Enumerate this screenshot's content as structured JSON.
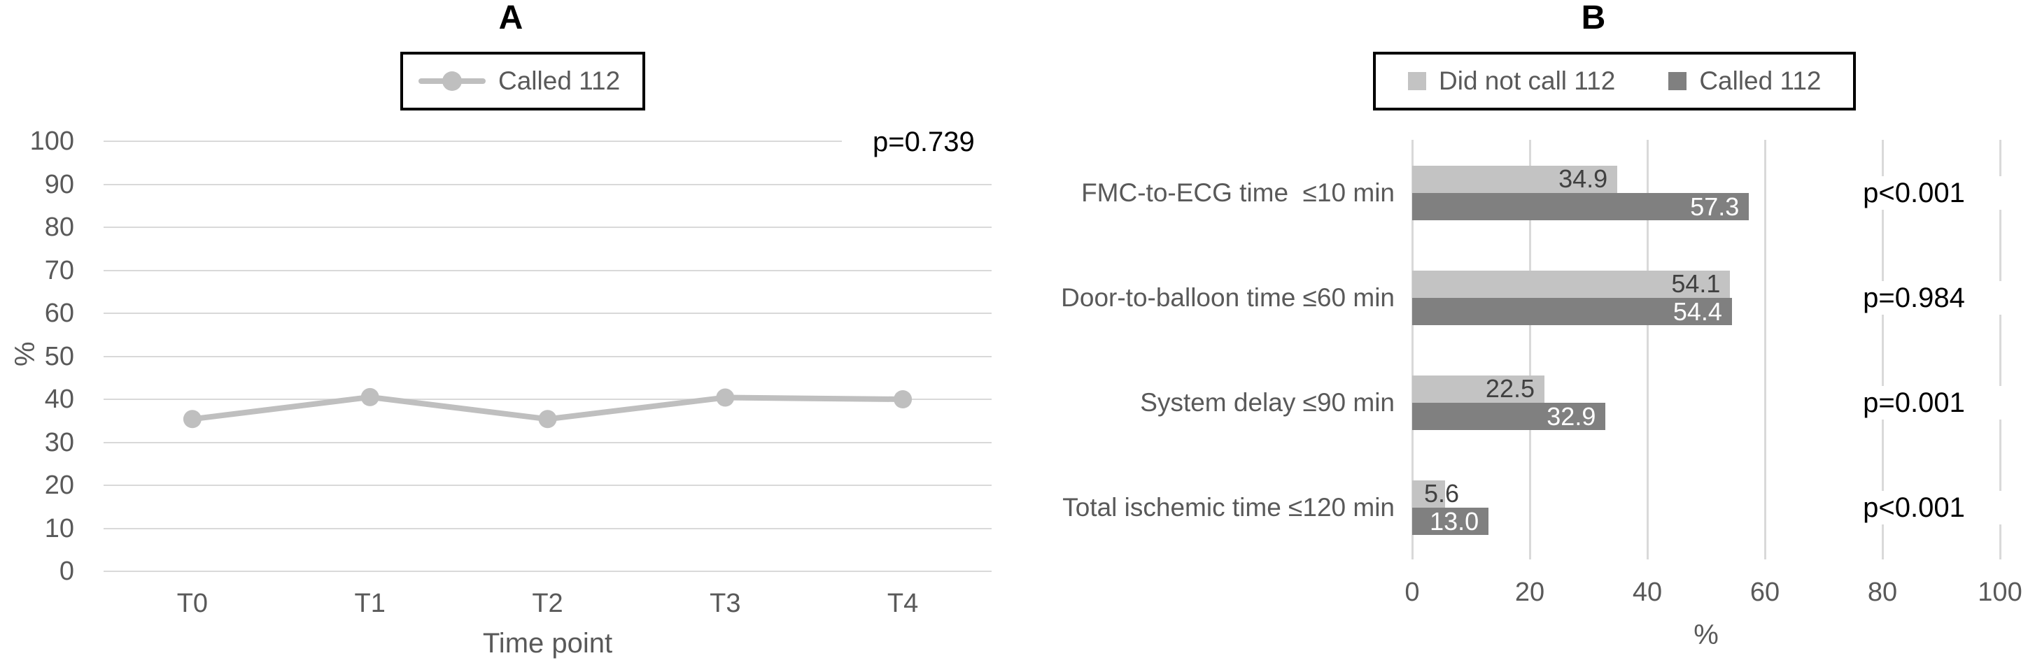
{
  "figure": {
    "panel_a": {
      "title": "A"
    },
    "panel_b": {
      "title": "B"
    }
  },
  "colors": {
    "line": "#bfbfbf",
    "bar_light": "#c3c3c3",
    "bar_dark": "#808080",
    "grid": "#d9d9d9",
    "axis_text": "#595959",
    "value_label_dark": "#404040",
    "value_label_light": "#ffffff",
    "p_text": "#000000"
  },
  "chart_data": [
    {
      "type": "line",
      "panel": "A",
      "categories": [
        "T0",
        "T1",
        "T2",
        "T3",
        "T4"
      ],
      "series": [
        {
          "name": "Called 112",
          "color": "#bfbfbf",
          "values": [
            35.4,
            40.5,
            35.4,
            40.4,
            40.0
          ]
        }
      ],
      "p_label": "p=0.739",
      "xlabel": "Time point",
      "ylabel": "%",
      "ylim": [
        0,
        100
      ],
      "yticks": [
        0,
        10,
        20,
        30,
        40,
        50,
        60,
        70,
        80,
        90,
        100
      ],
      "grid": "horizontal",
      "legend_position": "top"
    },
    {
      "type": "bar",
      "panel": "B",
      "orientation": "horizontal",
      "categories": [
        "FMC-to-ECG time  ≤10 min",
        "Door-to-balloon time ≤60 min",
        "System delay ≤90 min",
        "Total ischemic time ≤120 min"
      ],
      "series": [
        {
          "name": "Did not call 112",
          "color": "#c3c3c3",
          "values": [
            34.9,
            54.1,
            22.5,
            5.6
          ],
          "labels": [
            "34.9",
            "54.1",
            "22.5",
            "5.6"
          ]
        },
        {
          "name": "Called 112",
          "color": "#808080",
          "values": [
            57.3,
            54.4,
            32.9,
            13.0
          ],
          "labels": [
            "57.3",
            "54.4",
            "32.9",
            "13.0"
          ]
        }
      ],
      "p_values": [
        "p<0.001",
        "p=0.984",
        "p=0.001",
        "p<0.001"
      ],
      "xlabel": "%",
      "xlim": [
        0,
        100
      ],
      "xticks": [
        0,
        20,
        40,
        60,
        80,
        100
      ],
      "grid": "vertical",
      "legend_position": "top"
    }
  ]
}
